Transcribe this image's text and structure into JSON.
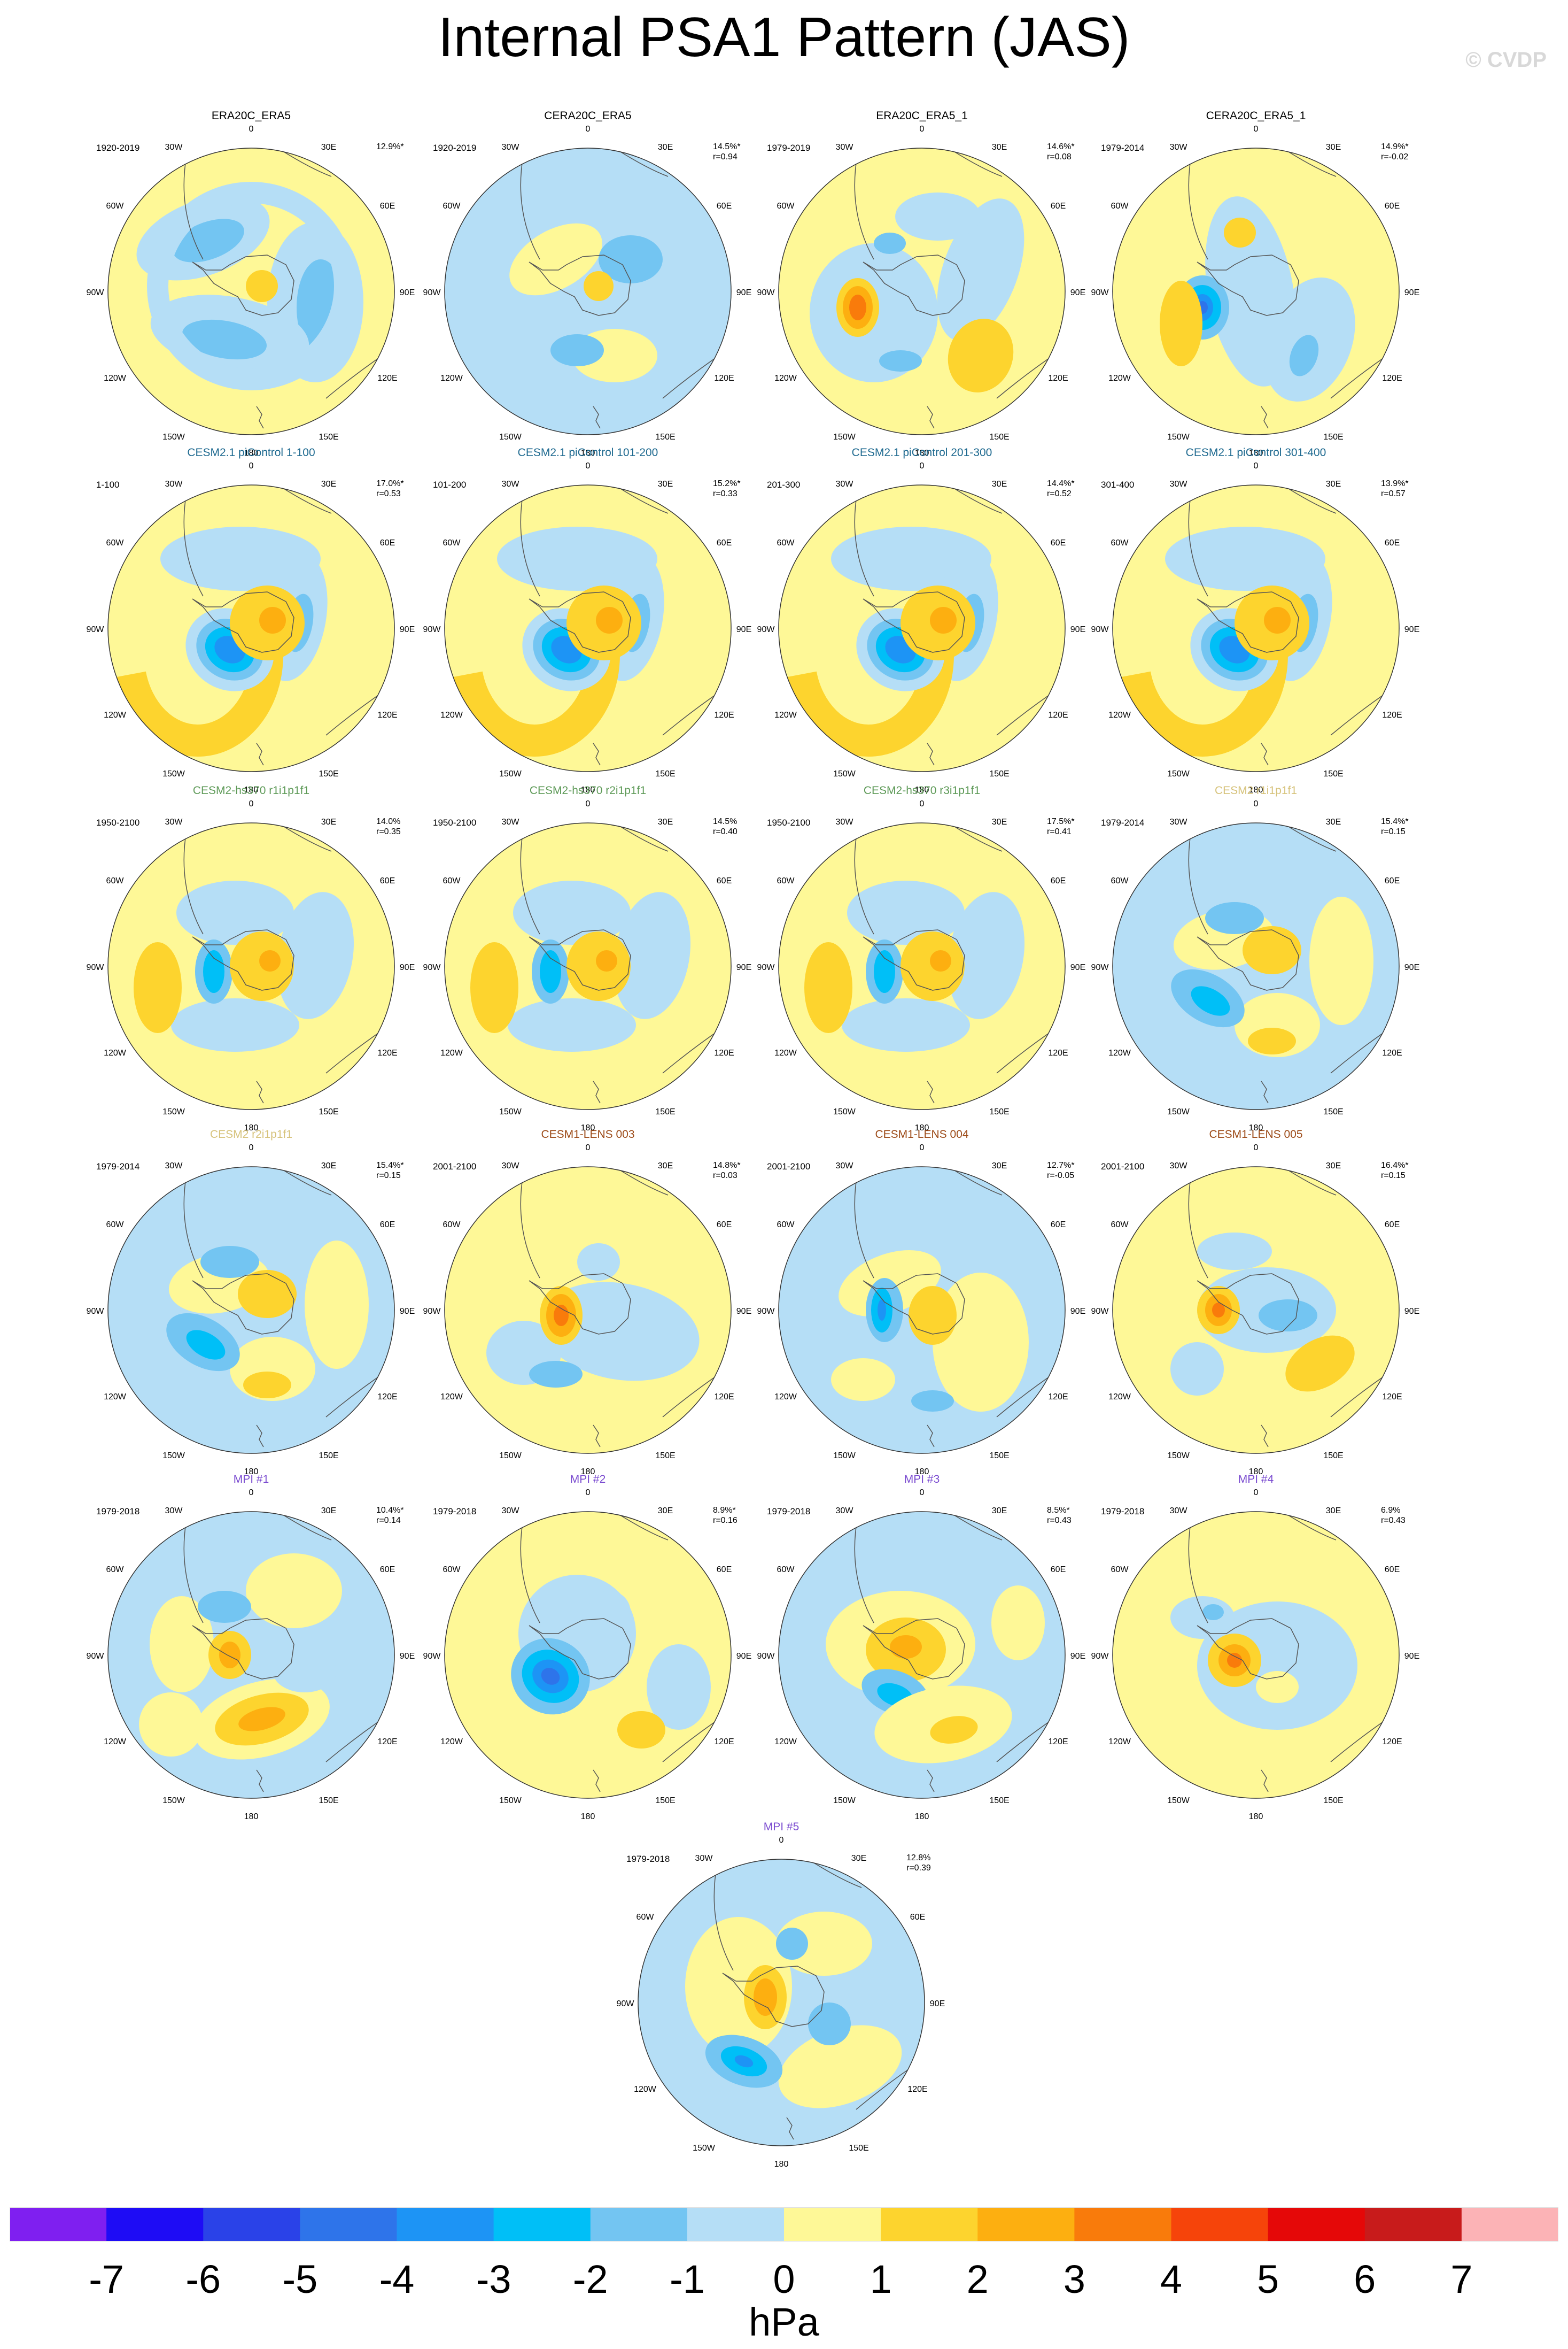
{
  "title": "Internal PSA1 Pattern (JAS)",
  "copyright": "© CVDP",
  "units": "hPa",
  "colors": {
    "palette": [
      "#7f1ff0",
      "#1e0cf5",
      "#2a42e8",
      "#2e74ea",
      "#1d94f5",
      "#00bff7",
      "#73c5f2",
      "#b5def6",
      "#fef897",
      "#fdd42e",
      "#fdaf10",
      "#f97b0b",
      "#f6440a",
      "#e50808",
      "#c81b1b",
      "#fcb3b6"
    ],
    "title_black": "#000000",
    "title_teal": "#1f6a90",
    "title_green": "#5e9a58",
    "title_khaki": "#d6c27a",
    "title_brown": "#9c4a17",
    "title_purple": "#7a4bd0"
  },
  "colorbar": {
    "ticks": [
      "-7",
      "-6",
      "-5",
      "-4",
      "-3",
      "-2",
      "-1",
      "0",
      "1",
      "2",
      "3",
      "4",
      "5",
      "6",
      "7"
    ]
  },
  "map_labels": {
    "lon_top": "0",
    "lon_30w": "30W",
    "lon_30e": "30E",
    "lon_60w": "60W",
    "lon_60e": "60E",
    "lon_90w": "90W",
    "lon_90e": "90E",
    "lon_120w": "120W",
    "lon_120e": "120E",
    "lon_150w": "150W",
    "lon_150e": "150E",
    "lon_180": "180"
  },
  "panels": [
    {
      "title": "ERA20C_ERA5",
      "title_color": "#000000",
      "period": "1920-2019",
      "pct": "12.9%*",
      "r": "",
      "pattern": "obs1"
    },
    {
      "title": "CERA20C_ERA5",
      "title_color": "#000000",
      "period": "1920-2019",
      "pct": "14.5%*",
      "r": "r=0.94",
      "pattern": "obs2"
    },
    {
      "title": "ERA20C_ERA5_1",
      "title_color": "#000000",
      "period": "1979-2019",
      "pct": "14.6%*",
      "r": "r=0.08",
      "pattern": "obs3"
    },
    {
      "title": "CERA20C_ERA5_1",
      "title_color": "#000000",
      "period": "1979-2014",
      "pct": "14.9%*",
      "r": "r=-0.02",
      "pattern": "obs4"
    },
    {
      "title": "CESM2.1 piControl 1-100",
      "title_color": "#1f6a90",
      "period": "1-100",
      "pct": "17.0%*",
      "r": "r=0.53",
      "pattern": "psa"
    },
    {
      "title": "CESM2.1 piControl 101-200",
      "title_color": "#1f6a90",
      "period": "101-200",
      "pct": "15.2%*",
      "r": "r=0.33",
      "pattern": "psa"
    },
    {
      "title": "CESM2.1 piControl 201-300",
      "title_color": "#1f6a90",
      "period": "201-300",
      "pct": "14.4%*",
      "r": "r=0.52",
      "pattern": "psa"
    },
    {
      "title": "CESM2.1 piControl 301-400",
      "title_color": "#1f6a90",
      "period": "301-400",
      "pct": "13.9%*",
      "r": "r=0.57",
      "pattern": "psa"
    },
    {
      "title": "CESM2-hs370 r1i1p1f1",
      "title_color": "#5e9a58",
      "period": "1950-2100",
      "pct": "14.0%",
      "r": "r=0.35",
      "pattern": "hs"
    },
    {
      "title": "CESM2-hs370 r2i1p1f1",
      "title_color": "#5e9a58",
      "period": "1950-2100",
      "pct": "14.5%",
      "r": "r=0.40",
      "pattern": "hs"
    },
    {
      "title": "CESM2-hs370 r3i1p1f1",
      "title_color": "#5e9a58",
      "period": "1950-2100",
      "pct": "17.5%*",
      "r": "r=0.41",
      "pattern": "hs"
    },
    {
      "title": "CESM2 r1i1p1f1",
      "title_color": "#d6c27a",
      "period": "1979-2014",
      "pct": "15.4%*",
      "r": "r=0.15",
      "pattern": "c2"
    },
    {
      "title": "CESM2 r2i1p1f1",
      "title_color": "#d6c27a",
      "period": "1979-2014",
      "pct": "15.4%*",
      "r": "r=0.15",
      "pattern": "c2"
    },
    {
      "title": "CESM1-LENS 003",
      "title_color": "#9c4a17",
      "period": "2001-2100",
      "pct": "14.8%*",
      "r": "r=0.03",
      "pattern": "lens3"
    },
    {
      "title": "CESM1-LENS 004",
      "title_color": "#9c4a17",
      "period": "2001-2100",
      "pct": "12.7%*",
      "r": "r=-0.05",
      "pattern": "lens4"
    },
    {
      "title": "CESM1-LENS 005",
      "title_color": "#9c4a17",
      "period": "2001-2100",
      "pct": "16.4%*",
      "r": "r=0.15",
      "pattern": "lens5"
    },
    {
      "title": "MPI #1",
      "title_color": "#7a4bd0",
      "period": "1979-2018",
      "pct": "10.4%*",
      "r": "r=0.14",
      "pattern": "mpi1"
    },
    {
      "title": "MPI #2",
      "title_color": "#7a4bd0",
      "period": "1979-2018",
      "pct": "8.9%*",
      "r": "r=0.16",
      "pattern": "mpi2"
    },
    {
      "title": "MPI #3",
      "title_color": "#7a4bd0",
      "period": "1979-2018",
      "pct": "8.5%*",
      "r": "r=0.43",
      "pattern": "mpi3"
    },
    {
      "title": "MPI #4",
      "title_color": "#7a4bd0",
      "period": "1979-2018",
      "pct": "6.9%",
      "r": "r=0.43",
      "pattern": "mpi4"
    },
    {
      "title": "MPI #5",
      "title_color": "#7a4bd0",
      "period": "1979-2018",
      "pct": "12.8%",
      "r": "r=0.39",
      "pattern": "mpi5"
    }
  ]
}
